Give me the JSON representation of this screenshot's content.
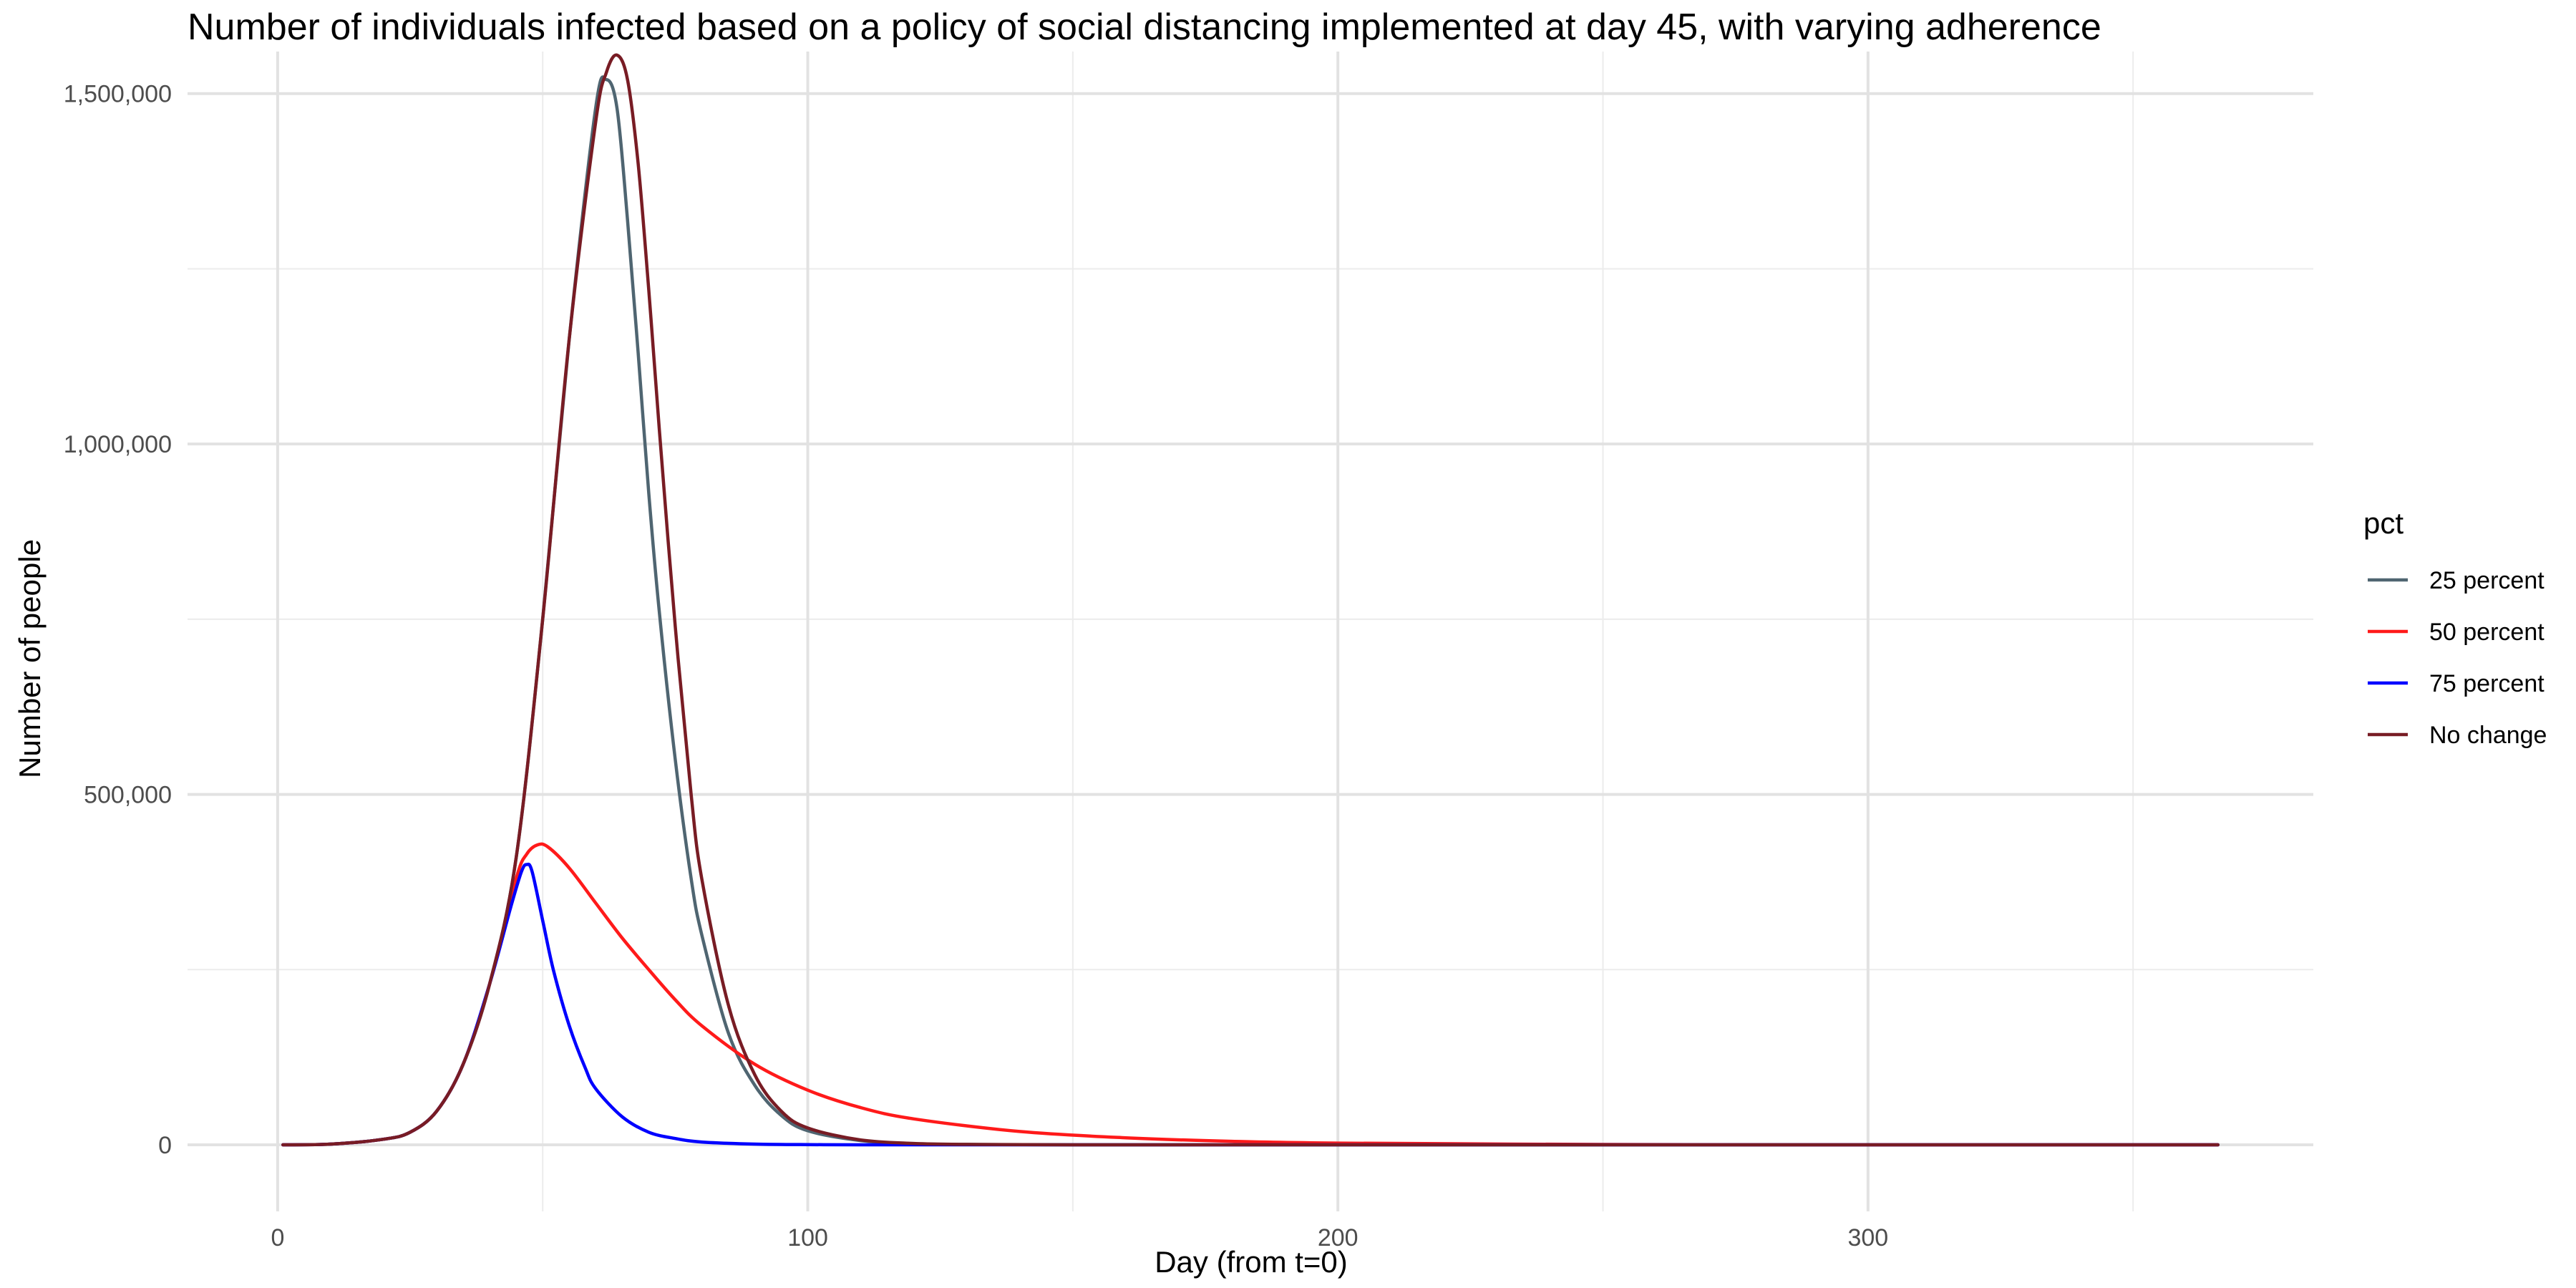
{
  "chart_data": {
    "type": "line",
    "title": "Number of individuals infected based on a policy of social distancing implemented at day 45, with varying adherence",
    "xlabel": "Day (from t=0)",
    "ylabel": "Number of people",
    "xlim": [
      -17,
      384
    ],
    "ylim": [
      -95000,
      1560000
    ],
    "x_ticks": [
      0,
      100,
      200,
      300
    ],
    "x_tick_labels": [
      "0",
      "100",
      "200",
      "300"
    ],
    "y_ticks": [
      0,
      500000,
      1000000,
      1500000
    ],
    "y_tick_labels": [
      "0",
      "500,000",
      "1,000,000",
      "1,500,000"
    ],
    "grid": true,
    "legend_title": "pct",
    "legend_position": "right",
    "series": [
      {
        "name": "25 percent",
        "color": "#4f6571",
        "x": [
          1,
          10,
          20,
          25,
          30,
          35,
          40,
          45,
          50,
          55,
          60,
          62,
          64,
          66,
          68,
          70,
          72,
          75,
          78,
          80,
          85,
          90,
          95,
          100,
          110,
          120,
          130,
          150,
          200,
          366
        ],
        "y": [
          0,
          1000,
          8000,
          18000,
          48000,
          115000,
          230000,
          410000,
          750000,
          1150000,
          1480000,
          1520000,
          1480000,
          1320000,
          1130000,
          930000,
          760000,
          550000,
          380000,
          300000,
          160000,
          85000,
          42000,
          20000,
          6000,
          1500,
          500,
          0,
          0,
          0
        ]
      },
      {
        "name": "50 percent",
        "color": "#ff1a1a",
        "x": [
          1,
          10,
          20,
          25,
          30,
          35,
          40,
          45,
          47,
          49,
          51,
          55,
          60,
          65,
          70,
          75,
          80,
          90,
          100,
          110,
          120,
          140,
          160,
          180,
          200,
          250,
          300,
          366
        ],
        "y": [
          0,
          1000,
          8000,
          18000,
          48000,
          115000,
          230000,
          380000,
          415000,
          428000,
          425000,
          395000,
          345000,
          295000,
          250000,
          207000,
          170000,
          115000,
          78000,
          53000,
          37000,
          19000,
          10000,
          5000,
          2500,
          500,
          0,
          0
        ]
      },
      {
        "name": "75 percent",
        "color": "#0000ff",
        "x": [
          1,
          10,
          20,
          25,
          30,
          35,
          40,
          44,
          46,
          47,
          48,
          50,
          52,
          55,
          58,
          60,
          65,
          70,
          75,
          80,
          90,
          100,
          110,
          130,
          366
        ],
        "y": [
          0,
          1000,
          8000,
          18000,
          48000,
          115000,
          230000,
          340000,
          390000,
          400000,
          390000,
          320000,
          250000,
          170000,
          110000,
          80000,
          40000,
          18000,
          9000,
          4000,
          1000,
          300,
          0,
          0,
          0
        ]
      },
      {
        "name": "No change",
        "color": "#781c24",
        "x": [
          1,
          10,
          20,
          25,
          30,
          35,
          40,
          45,
          50,
          55,
          60,
          62,
          64,
          66,
          68,
          70,
          72,
          75,
          78,
          80,
          85,
          90,
          95,
          100,
          110,
          120,
          130,
          150,
          200,
          366
        ],
        "y": [
          0,
          1000,
          8000,
          18000,
          48000,
          115000,
          230000,
          410000,
          750000,
          1150000,
          1460000,
          1530000,
          1555000,
          1520000,
          1400000,
          1220000,
          1020000,
          740000,
          500000,
          380000,
          200000,
          100000,
          48000,
          24000,
          7000,
          2000,
          600,
          0,
          0,
          0
        ]
      }
    ]
  }
}
